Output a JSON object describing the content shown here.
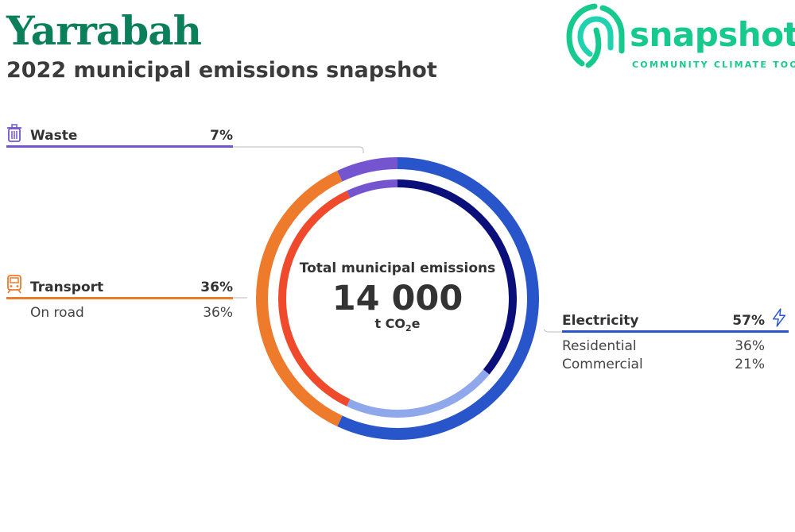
{
  "title": "Yarrabah",
  "subtitle": "2022 municipal emissions snapshot",
  "logo": {
    "word": "snapshot",
    "tagline": "COMMUNITY CLIMATE TOOL",
    "color": "#16c98c"
  },
  "center": {
    "label": "Total municipal emissions",
    "value": "14 000",
    "unit_prefix": "t CO",
    "unit_sub": "2",
    "unit_suffix": "e"
  },
  "categories": {
    "waste": {
      "name": "Waste",
      "pct": "7%",
      "color": "#7554d0",
      "icon": "trash-icon"
    },
    "transport": {
      "name": "Transport",
      "pct": "36%",
      "color": "#ee7a2c",
      "icon": "train-icon",
      "subs": [
        {
          "name": "On road",
          "pct": "36%"
        }
      ]
    },
    "electricity": {
      "name": "Electricity",
      "pct": "57%",
      "color": "#2855c9",
      "icon": "lightning-icon",
      "subs": [
        {
          "name": "Residential",
          "pct": "36%"
        },
        {
          "name": "Commercial",
          "pct": "21%"
        }
      ]
    }
  },
  "chart_data": {
    "type": "pie",
    "title": "2022 municipal emissions snapshot",
    "total": 14000,
    "unit": "t CO2e",
    "outer_ring": [
      {
        "name": "Electricity",
        "value": 57,
        "color": "#2855c9"
      },
      {
        "name": "Transport",
        "value": 36,
        "color": "#ee7a2c"
      },
      {
        "name": "Waste",
        "value": 7,
        "color": "#7554d0"
      }
    ],
    "inner_ring": [
      {
        "name": "Residential",
        "value": 36,
        "color": "#0a0f7a"
      },
      {
        "name": "Commercial",
        "value": 21,
        "color": "#8fa8ec"
      },
      {
        "name": "On road",
        "value": 36,
        "color": "#ef4a2c"
      },
      {
        "name": "Waste",
        "value": 7,
        "color": "#7554d0"
      }
    ]
  }
}
